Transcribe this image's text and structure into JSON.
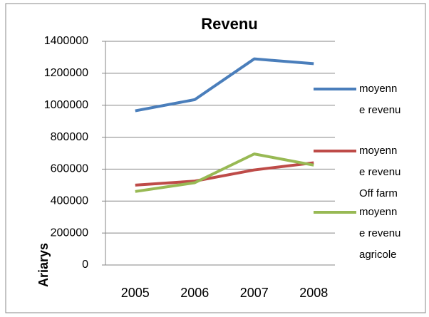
{
  "chart_data": {
    "type": "line",
    "title": "Revenu",
    "y_label": "Ariarys",
    "categories": [
      "2005",
      "2006",
      "2007",
      "2008"
    ],
    "series": [
      {
        "name": "moyenne revenu",
        "color": "#4a7ebb",
        "values": [
          965000,
          1035000,
          1290000,
          1260000
        ]
      },
      {
        "name": "moyenne revenu Off farm",
        "color": "#be4b48",
        "values": [
          500000,
          525000,
          595000,
          640000
        ]
      },
      {
        "name": "moyenne revenu agricole",
        "color": "#98b954",
        "values": [
          460000,
          515000,
          695000,
          625000
        ]
      }
    ],
    "ylim": [
      0,
      1400000
    ],
    "yticks": [
      0,
      200000,
      400000,
      600000,
      800000,
      1000000,
      1200000,
      1400000
    ],
    "grid": true,
    "legend": "right"
  }
}
